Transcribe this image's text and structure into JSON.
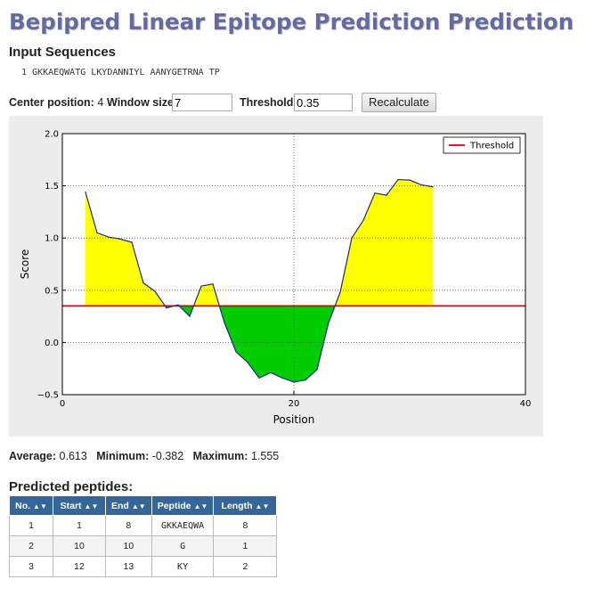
{
  "page": {
    "title": "Bepipred Linear Epitope Prediction Prediction"
  },
  "input": {
    "heading": "Input Sequences",
    "sequence_line": "1 GKKAEQWATG LKYDANNIYL AANYGETRNA TP"
  },
  "controls": {
    "center_label": "Center position:",
    "center_value": "4",
    "window_label": "Window size:",
    "window_value": "7",
    "threshold_label": "Threshold:",
    "threshold_value": "0.35",
    "recalc_label": "Recalculate"
  },
  "stats": {
    "average_label": "Average:",
    "average_value": "0.613",
    "minimum_label": "Minimum:",
    "minimum_value": "-0.382",
    "maximum_label": "Maximum:",
    "maximum_value": "1.555"
  },
  "peptides": {
    "heading": "Predicted peptides:",
    "sort_icon": "sort-arrows-icon",
    "columns": [
      "No.",
      "Start",
      "End",
      "Peptide",
      "Length"
    ],
    "rows": [
      [
        "1",
        "1",
        "8",
        "GKKAEQWA",
        "8"
      ],
      [
        "2",
        "10",
        "10",
        "G",
        "1"
      ],
      [
        "3",
        "12",
        "13",
        "KY",
        "2"
      ]
    ]
  },
  "chart_data": {
    "type": "line",
    "xlabel": "Position",
    "ylabel": "Score",
    "xlim": [
      0,
      40
    ],
    "ylim": [
      -0.5,
      2.0
    ],
    "xticks": [
      0,
      20,
      40
    ],
    "yticks": [
      -0.5,
      0.0,
      0.5,
      1.0,
      1.5,
      2.0
    ],
    "ytick_labels": [
      "−0.5",
      "0.0",
      "0.5",
      "1.0",
      "1.5",
      "2.0"
    ],
    "grid": true,
    "legend": {
      "position": "top-right",
      "entries": [
        "Threshold"
      ]
    },
    "threshold": 0.35,
    "colors": {
      "line": "#1f2a8a",
      "above": "#ffff00",
      "below": "#00cc00",
      "threshold": "#dd0000",
      "background": "#ececec"
    },
    "x": [
      2,
      3,
      4,
      5,
      6,
      7,
      8,
      9,
      10,
      11,
      12,
      13,
      14,
      15,
      16,
      17,
      18,
      19,
      20,
      21,
      22,
      23,
      24,
      25,
      26,
      27,
      28,
      29,
      30,
      31,
      32
    ],
    "y": [
      1.44,
      1.05,
      1.01,
      0.99,
      0.96,
      0.57,
      0.49,
      0.33,
      0.36,
      0.25,
      0.54,
      0.56,
      0.19,
      -0.09,
      -0.19,
      -0.34,
      -0.29,
      -0.34,
      -0.38,
      -0.36,
      -0.26,
      0.19,
      0.48,
      1.0,
      1.17,
      1.43,
      1.41,
      1.56,
      1.555,
      1.51,
      1.49
    ]
  }
}
